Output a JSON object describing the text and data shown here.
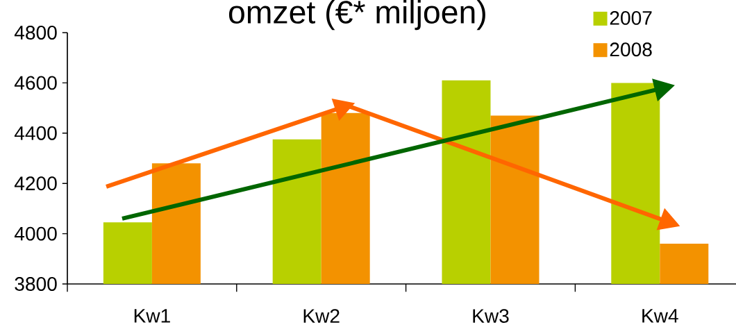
{
  "chart_data": {
    "type": "bar",
    "title": "omzet (€* miljoen)",
    "categories": [
      "Kw1",
      "Kw2",
      "Kw3",
      "Kw4"
    ],
    "series": [
      {
        "name": "2007",
        "color": "#b8d000",
        "values": [
          4045,
          4375,
          4610,
          4600
        ]
      },
      {
        "name": "2008",
        "color": "#f39200",
        "values": [
          4280,
          4480,
          4470,
          3960
        ]
      }
    ],
    "ylim": [
      3800,
      4800
    ],
    "yticks": [
      3800,
      4000,
      4200,
      4400,
      4600,
      4800
    ],
    "grid": false,
    "legend": "top right"
  }
}
